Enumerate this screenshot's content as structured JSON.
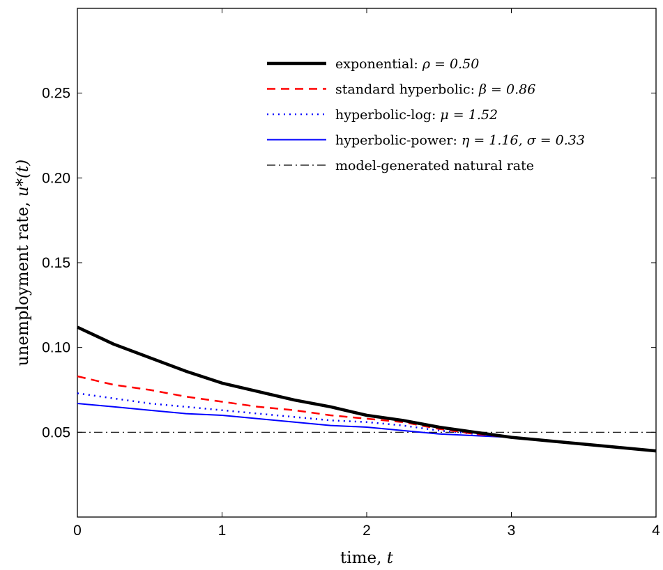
{
  "chart_data": {
    "type": "line",
    "title": "",
    "xlabel": "time, ",
    "xlabel_var": "t",
    "ylabel": "unemployment rate, ",
    "ylabel_var": "u*(t)",
    "xlim": [
      0,
      4
    ],
    "ylim": [
      0,
      0.3
    ],
    "xticks": [
      0,
      1,
      2,
      3,
      4
    ],
    "xtick_labels": [
      "0",
      "1",
      "2",
      "3",
      "4"
    ],
    "yticks": [
      0.05,
      0.1,
      0.15,
      0.2,
      0.25
    ],
    "ytick_labels": [
      "0.05",
      "0.10",
      "0.15",
      "0.20",
      "0.25"
    ],
    "grid": false,
    "legend_position": "top-right",
    "x": [
      0,
      0.25,
      0.5,
      0.75,
      1.0,
      1.25,
      1.5,
      1.75,
      2.0,
      2.25,
      2.5,
      2.75,
      3.0,
      3.25,
      3.5,
      3.75,
      4.0
    ],
    "series": [
      {
        "name": "exponential: ",
        "param": "ρ = 0.50",
        "color": "#000000",
        "style": "solid-thick",
        "values": [
          0.112,
          0.102,
          0.094,
          0.086,
          0.079,
          0.074,
          0.069,
          0.065,
          0.06,
          0.057,
          0.053,
          0.05,
          0.047,
          0.045,
          0.043,
          0.041,
          0.039
        ]
      },
      {
        "name": "standard hyperbolic: ",
        "param": "β = 0.86",
        "color": "#ff0000",
        "style": "dashed",
        "values": [
          0.083,
          0.078,
          0.075,
          0.071,
          0.068,
          0.065,
          0.063,
          0.06,
          0.058,
          0.056,
          0.052,
          0.049,
          0.047,
          0.045,
          0.043,
          0.041,
          0.039
        ]
      },
      {
        "name": "hyperbolic-log: ",
        "param": "μ = 1.52",
        "color": "#0000ff",
        "style": "dotted",
        "values": [
          0.073,
          0.07,
          0.067,
          0.065,
          0.063,
          0.061,
          0.059,
          0.057,
          0.056,
          0.054,
          0.051,
          0.049,
          0.047,
          0.045,
          0.043,
          0.041,
          0.039
        ]
      },
      {
        "name": "hyperbolic-power: ",
        "param": "η = 1.16, σ = 0.33",
        "color": "#0000ff",
        "style": "solid",
        "values": [
          0.067,
          0.065,
          0.063,
          0.061,
          0.06,
          0.058,
          0.056,
          0.054,
          0.053,
          0.051,
          0.049,
          0.048,
          0.047,
          0.045,
          0.043,
          0.041,
          0.039
        ]
      },
      {
        "name": "model-generated natural rate",
        "param": "",
        "color": "#000000",
        "style": "dashdot",
        "values": [
          0.05,
          0.05,
          0.05,
          0.05,
          0.05,
          0.05,
          0.05,
          0.05,
          0.05,
          0.05,
          0.05,
          0.05,
          0.05,
          0.05,
          0.05,
          0.05,
          0.05
        ]
      }
    ]
  }
}
